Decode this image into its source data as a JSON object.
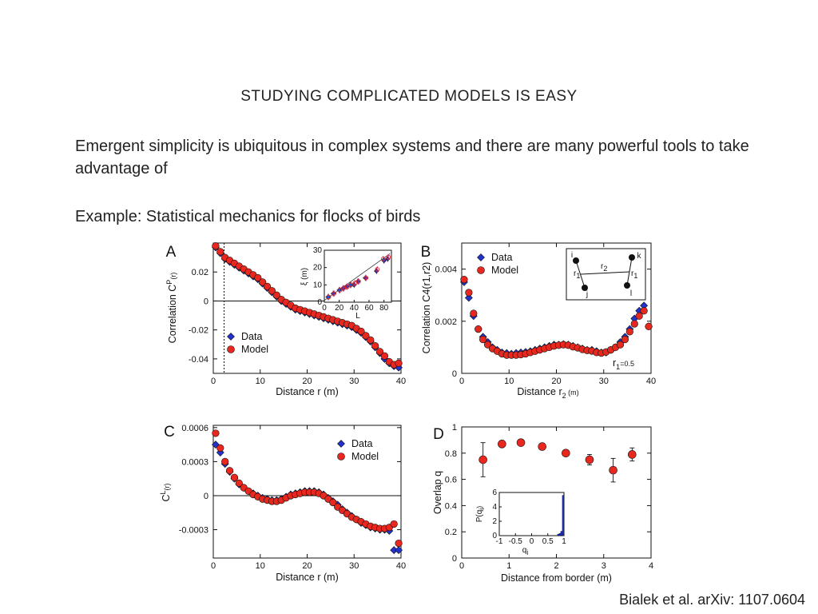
{
  "slide": {
    "title": "STUDYING COMPLICATED MODELS IS EASY",
    "bullet1": "Emergent simplicity is ubiquitous in complex systems and there are many powerful tools to take advantage of",
    "bullet2": "Example: Statistical mechanics for flocks of birds",
    "citation": "Bialek et al. arXiv: 1107.0604"
  },
  "colors": {
    "data": "#2233cc",
    "model": "#e8281e",
    "outline": "#111111"
  },
  "chart_data": [
    {
      "panel": "A",
      "type": "scatter",
      "xlabel": "Distance r (m)",
      "ylabel_main": "Correlation C",
      "ylabel_sup": "P",
      "ylabel_tail": "(r)",
      "xlim": [
        0,
        40
      ],
      "ylim": [
        -0.05,
        0.04
      ],
      "xticks": [
        0,
        10,
        20,
        30,
        40
      ],
      "yticks": [
        -0.04,
        -0.02,
        0,
        0.02
      ],
      "ytick_labels": [
        "-0.04",
        "-0.02",
        "0",
        "0.02"
      ],
      "legend": {
        "placement": "lower-left",
        "entries": [
          "Data",
          "Model"
        ]
      },
      "series": [
        {
          "name": "Data",
          "marker": "diamond",
          "x": [
            0.5,
            1.5,
            2.5,
            3.5,
            4.5,
            5.5,
            6.5,
            7.5,
            8.5,
            9.5,
            10.5,
            11.5,
            12.5,
            13.5,
            14.5,
            15.5,
            16.5,
            17.5,
            18.5,
            19.5,
            20.5,
            21.5,
            22.5,
            23.5,
            24.5,
            25.5,
            26.5,
            27.5,
            28.5,
            29.5,
            30.5,
            31.5,
            32.5,
            33.5,
            34.5,
            35.5,
            36.5,
            37.5,
            38.5,
            39.5
          ],
          "y": [
            0.037,
            0.033,
            0.029,
            0.027,
            0.025,
            0.023,
            0.021,
            0.019,
            0.017,
            0.015,
            0.012,
            0.009,
            0.006,
            0.003,
            0.0,
            -0.002,
            -0.004,
            -0.006,
            -0.007,
            -0.008,
            -0.009,
            -0.01,
            -0.011,
            -0.012,
            -0.013,
            -0.014,
            -0.015,
            -0.016,
            -0.017,
            -0.018,
            -0.02,
            -0.022,
            -0.025,
            -0.028,
            -0.032,
            -0.036,
            -0.04,
            -0.043,
            -0.045,
            -0.046
          ]
        },
        {
          "name": "Model",
          "marker": "circle",
          "x": [
            0.5,
            1.5,
            2.5,
            3.5,
            4.5,
            5.5,
            6.5,
            7.5,
            8.5,
            9.5,
            10.5,
            11.5,
            12.5,
            13.5,
            14.5,
            15.5,
            16.5,
            17.5,
            18.5,
            19.5,
            20.5,
            21.5,
            22.5,
            23.5,
            24.5,
            25.5,
            26.5,
            27.5,
            28.5,
            29.5,
            30.5,
            31.5,
            32.5,
            33.5,
            34.5,
            35.5,
            36.5,
            37.5,
            38.5,
            39.5
          ],
          "y": [
            0.038,
            0.034,
            0.03,
            0.028,
            0.026,
            0.024,
            0.022,
            0.02,
            0.018,
            0.016,
            0.013,
            0.01,
            0.007,
            0.004,
            0.001,
            -0.001,
            -0.003,
            -0.005,
            -0.006,
            -0.007,
            -0.008,
            -0.009,
            -0.01,
            -0.011,
            -0.012,
            -0.013,
            -0.014,
            -0.015,
            -0.016,
            -0.017,
            -0.019,
            -0.021,
            -0.024,
            -0.027,
            -0.031,
            -0.035,
            -0.038,
            -0.042,
            -0.044,
            -0.043
          ]
        }
      ],
      "inset": {
        "xlabel": "L",
        "ylabel": "ξ (m)",
        "xlim": [
          0,
          90
        ],
        "ylim": [
          0,
          30
        ],
        "xticks": [
          0,
          20,
          40,
          60,
          80
        ],
        "yticks": [
          0,
          10,
          20,
          30
        ],
        "series": [
          {
            "name": "Data",
            "marker": "diamond",
            "x": [
              5,
              12,
              20,
              25,
              30,
              35,
              40,
              45,
              55,
              70,
              80,
              85
            ],
            "y": [
              3,
              5,
              7,
              8,
              9,
              10,
              10,
              12,
              14,
              18,
              24,
              25
            ]
          },
          {
            "name": "Model",
            "marker": "circle",
            "x": [
              6,
              13,
              21,
              26,
              31,
              36,
              41,
              46,
              56,
              71,
              79,
              86
            ],
            "y": [
              3,
              5,
              7,
              8,
              9,
              10,
              11,
              12,
              14,
              19,
              25,
              26
            ]
          }
        ],
        "fit": [
          [
            0,
            1
          ],
          [
            88,
            28
          ]
        ]
      }
    },
    {
      "panel": "B",
      "type": "scatter",
      "xlabel_main": "Distance r",
      "xlabel_sub": "2",
      "xlabel_tail": " (m)",
      "ylabel": "Correlation C4(r1,r2)",
      "xlim": [
        0,
        40
      ],
      "ylim": [
        0,
        0.005
      ],
      "xticks": [
        0,
        10,
        20,
        30,
        40
      ],
      "yticks": [
        0,
        0.002,
        0.004
      ],
      "ytick_labels": [
        "0",
        "0.002",
        "0.004"
      ],
      "legend": {
        "placement": "top-left",
        "entries": [
          "Data",
          "Model"
        ]
      },
      "annotation": {
        "main": "r",
        "sub": "1",
        "tail": "=0.5"
      },
      "diagram_labels": {
        "i": "i",
        "j": "j",
        "k": "k",
        "l": "l",
        "r1": "r",
        "r1_sub": "1",
        "r2": "r",
        "r2_sub": "2"
      },
      "series": [
        {
          "name": "Data",
          "marker": "diamond",
          "x": [
            0.5,
            1.5,
            2.5,
            3.5,
            4.5,
            5.5,
            6.5,
            7.5,
            8.5,
            9.5,
            10.5,
            11.5,
            12.5,
            13.5,
            14.5,
            15.5,
            16.5,
            17.5,
            18.5,
            19.5,
            20.5,
            21.5,
            22.5,
            23.5,
            24.5,
            25.5,
            26.5,
            27.5,
            28.5,
            29.5,
            30.5,
            31.5,
            32.5,
            33.5,
            34.5,
            35.5,
            36.5,
            37.5,
            38.5,
            39.5
          ],
          "y": [
            0.0035,
            0.0029,
            0.0022,
            0.0017,
            0.0014,
            0.0012,
            0.001,
            0.0009,
            0.0008,
            0.00078,
            0.00075,
            0.00078,
            0.0008,
            0.00082,
            0.00085,
            0.0009,
            0.00095,
            0.001,
            0.00105,
            0.0011,
            0.0011,
            0.00112,
            0.0011,
            0.00105,
            0.001,
            0.00095,
            0.0009,
            0.0009,
            0.00085,
            0.0008,
            0.0008,
            0.0009,
            0.001,
            0.0012,
            0.0014,
            0.0017,
            0.0021,
            0.0024,
            0.0026,
            0.0018
          ]
        },
        {
          "name": "Model",
          "marker": "circle",
          "x": [
            0.5,
            1.5,
            2.5,
            3.5,
            4.5,
            5.5,
            6.5,
            7.5,
            8.5,
            9.5,
            10.5,
            11.5,
            12.5,
            13.5,
            14.5,
            15.5,
            16.5,
            17.5,
            18.5,
            19.5,
            20.5,
            21.5,
            22.5,
            23.5,
            24.5,
            25.5,
            26.5,
            27.5,
            28.5,
            29.5,
            30.5,
            31.5,
            32.5,
            33.5,
            34.5,
            35.5,
            36.5,
            37.5,
            38.5,
            39.5
          ],
          "y": [
            0.0036,
            0.0031,
            0.0023,
            0.0017,
            0.0013,
            0.0011,
            0.00095,
            0.00085,
            0.00075,
            0.0007,
            0.0007,
            0.0007,
            0.00072,
            0.00075,
            0.0008,
            0.00085,
            0.0009,
            0.00095,
            0.001,
            0.00105,
            0.00108,
            0.0011,
            0.00108,
            0.00102,
            0.00098,
            0.00092,
            0.00088,
            0.00086,
            0.0008,
            0.00078,
            0.00082,
            0.0009,
            0.001,
            0.0011,
            0.0013,
            0.0016,
            0.0019,
            0.0022,
            0.0024,
            0.0018
          ]
        }
      ]
    },
    {
      "panel": "C",
      "type": "scatter",
      "xlabel": "Distance r (m)",
      "ylabel_main": "C",
      "ylabel_sup": "L",
      "ylabel_tail": "(r)",
      "xlim": [
        0,
        40
      ],
      "ylim": [
        -0.00055,
        0.00062
      ],
      "xticks": [
        0,
        10,
        20,
        30,
        40
      ],
      "yticks": [
        -0.0003,
        0,
        0.0003,
        0.0006
      ],
      "ytick_labels": [
        "-0.0003",
        "0",
        "0.0003",
        "0.0006"
      ],
      "legend": {
        "placement": "top-right",
        "entries": [
          "Data",
          "Model"
        ]
      },
      "series": [
        {
          "name": "Data",
          "marker": "diamond",
          "x": [
            0.5,
            1.5,
            2.5,
            3.5,
            4.5,
            5.5,
            6.5,
            7.5,
            8.5,
            9.5,
            10.5,
            11.5,
            12.5,
            13.5,
            14.5,
            15.5,
            16.5,
            17.5,
            18.5,
            19.5,
            20.5,
            21.5,
            22.5,
            23.5,
            24.5,
            25.5,
            26.5,
            27.5,
            28.5,
            29.5,
            30.5,
            31.5,
            32.5,
            33.5,
            34.5,
            35.5,
            36.5,
            37.5,
            38.5,
            39.5
          ],
          "y": [
            0.00045,
            0.00038,
            0.00028,
            0.00021,
            0.00015,
            0.0001,
            7e-05,
            4e-05,
            2e-05,
            0.0,
            -2e-05,
            -3e-05,
            -4e-05,
            -4e-05,
            -3e-05,
            -1e-05,
            1e-05,
            2e-05,
            3e-05,
            4e-05,
            4e-05,
            4e-05,
            3e-05,
            1e-05,
            -2e-05,
            -5e-05,
            -8e-05,
            -0.00012,
            -0.00015,
            -0.00018,
            -0.00021,
            -0.00024,
            -0.00026,
            -0.00028,
            -0.00029,
            -0.0003,
            -0.0003,
            -0.00031,
            -0.00048,
            -0.00048
          ]
        },
        {
          "name": "Model",
          "marker": "circle",
          "x": [
            0.5,
            1.5,
            2.5,
            3.5,
            4.5,
            5.5,
            6.5,
            7.5,
            8.5,
            9.5,
            10.5,
            11.5,
            12.5,
            13.5,
            14.5,
            15.5,
            16.5,
            17.5,
            18.5,
            19.5,
            20.5,
            21.5,
            22.5,
            23.5,
            24.5,
            25.5,
            26.5,
            27.5,
            28.5,
            29.5,
            30.5,
            31.5,
            32.5,
            33.5,
            34.5,
            35.5,
            36.5,
            37.5,
            38.5,
            39.5
          ],
          "y": [
            0.00055,
            0.00042,
            0.0003,
            0.00022,
            0.00016,
            0.00011,
            7e-05,
            4e-05,
            1e-05,
            -1e-05,
            -3e-05,
            -4e-05,
            -5e-05,
            -5e-05,
            -4e-05,
            -2e-05,
            0.0,
            1e-05,
            2e-05,
            3e-05,
            3e-05,
            3e-05,
            2e-05,
            0.0,
            -3e-05,
            -6e-05,
            -0.0001,
            -0.00013,
            -0.00016,
            -0.00019,
            -0.00021,
            -0.00023,
            -0.00025,
            -0.00027,
            -0.00028,
            -0.00029,
            -0.00029,
            -0.00028,
            -0.00025,
            -0.00042
          ]
        }
      ]
    },
    {
      "panel": "D",
      "type": "scatter",
      "xlabel": "Distance from border (m)",
      "ylabel": "Overlap q",
      "xlim": [
        0,
        4
      ],
      "ylim": [
        0,
        1
      ],
      "xticks": [
        0,
        1,
        2,
        3,
        4
      ],
      "yticks": [
        0,
        0.2,
        0.4,
        0.6,
        0.8,
        1
      ],
      "ytick_labels": [
        "0",
        "0.2",
        "0.4",
        "0.6",
        "0.8",
        "1"
      ],
      "series": [
        {
          "name": "Model",
          "marker": "circle",
          "x": [
            0.45,
            0.85,
            1.25,
            1.7,
            2.2,
            2.7,
            3.2,
            3.6
          ],
          "y": [
            0.75,
            0.87,
            0.88,
            0.85,
            0.8,
            0.75,
            0.67,
            0.79
          ],
          "err": [
            0.13,
            0.02,
            0.02,
            0.02,
            0.02,
            0.04,
            0.09,
            0.05
          ]
        }
      ],
      "inset": {
        "type": "bar",
        "xlabel_main": "q",
        "xlabel_sub": "i",
        "ylabel_main": "P(q",
        "ylabel_sub": "i",
        "ylabel_tail": ")",
        "xlim": [
          -1,
          1
        ],
        "ylim": [
          0,
          6
        ],
        "xticks": [
          -1,
          -0.5,
          0,
          0.5,
          1
        ],
        "xtick_labels": [
          "-1",
          "-0.5",
          "0",
          "0.5",
          "1"
        ],
        "yticks": [
          0,
          2,
          4,
          6
        ],
        "bins": [
          0.8,
          0.85,
          0.9,
          0.95
        ],
        "values": [
          0.2,
          0.3,
          0.6,
          5.6
        ],
        "bin_width": 0.05
      }
    }
  ]
}
